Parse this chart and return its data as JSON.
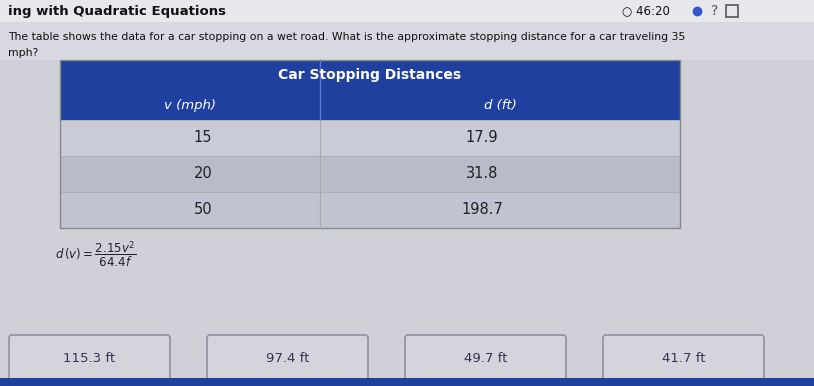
{
  "title_partial": "ing with Quadratic Equations",
  "timer_text": "46:20",
  "question_line1": "The table shows the data for a car stopping on a wet road. What is the approximate stopping distance for a car traveling 35",
  "question_line2": "mph?",
  "table_title": "Car Stopping Distances",
  "col1_header": "v (mph)",
  "col2_header": "d (ft)",
  "rows": [
    [
      "15",
      "17.9"
    ],
    [
      "20",
      "31.8"
    ],
    [
      "50",
      "198.7"
    ]
  ],
  "answers": [
    "115.3 ft",
    "97.4 ft",
    "49.7 ft",
    "41.7 ft"
  ],
  "page_bg": "#d0d0d8",
  "top_strip_bg": "#e8e8ec",
  "question_bg": "#d8d8e0",
  "table_header_bg": "#2040a0",
  "table_row_bg1": "#c8ccd8",
  "table_row_bg2": "#b8bcc8",
  "table_row_bg3": "#c0c4d0",
  "table_text_white": "#ffffff",
  "table_text_dark": "#222222",
  "answer_box_bg": "#d4d4dc",
  "answer_box_border": "#9090a0",
  "bottom_bar_bg": "#2040a0",
  "title_color": "#111111",
  "timer_color": "#111111"
}
